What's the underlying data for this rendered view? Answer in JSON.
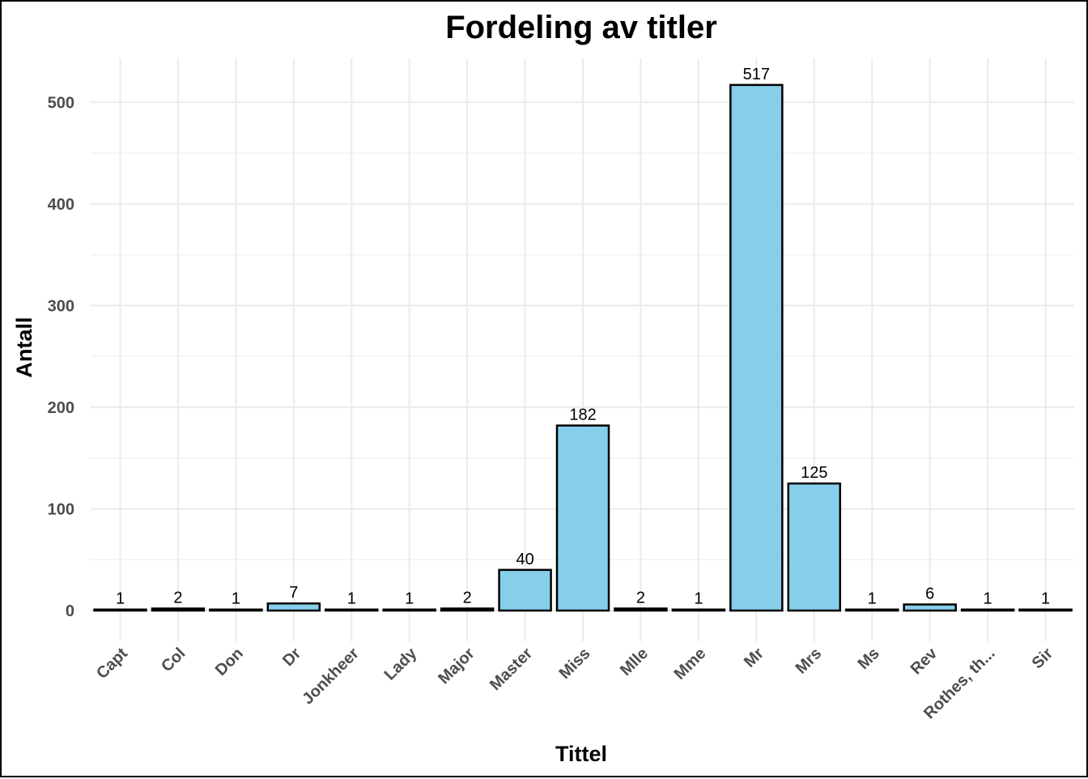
{
  "chart_data": {
    "type": "bar",
    "title": "Fordeling av titler",
    "xlabel": "Tittel",
    "ylabel": "Antall",
    "categories": [
      "Capt",
      "Col",
      "Don",
      "Dr",
      "Jonkheer",
      "Lady",
      "Major",
      "Master",
      "Miss",
      "Mlle",
      "Mme",
      "Mr",
      "Mrs",
      "Ms",
      "Rev",
      "Rothes, th...",
      "Sir"
    ],
    "values": [
      1,
      2,
      1,
      7,
      1,
      1,
      2,
      40,
      182,
      2,
      1,
      517,
      125,
      1,
      6,
      1,
      1
    ],
    "yticks": [
      0,
      100,
      200,
      300,
      400,
      500
    ],
    "ylim": [
      0,
      543
    ],
    "grid": true,
    "data_labels": true,
    "colors": {
      "bar_fill": "#87ceeb",
      "bar_stroke": "#000000"
    }
  }
}
